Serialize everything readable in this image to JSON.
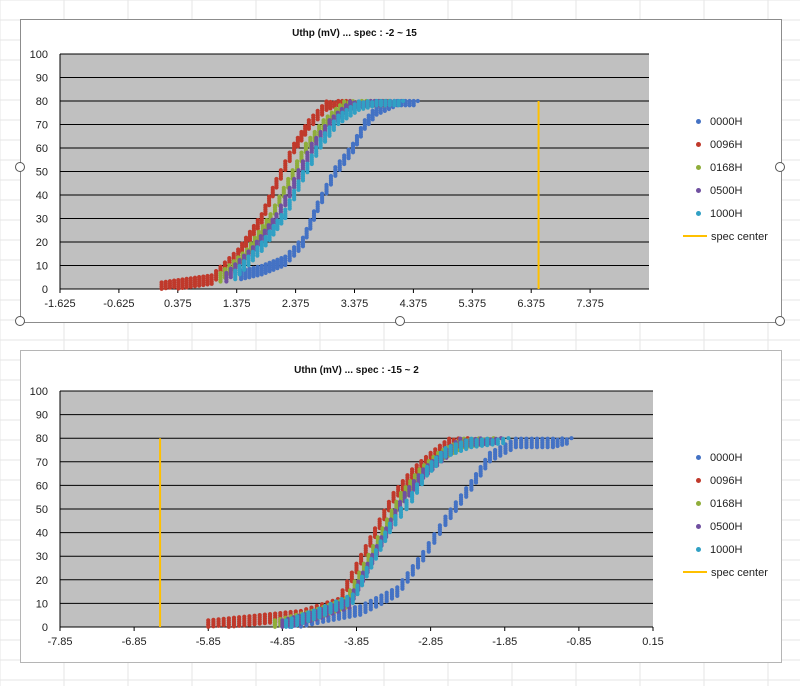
{
  "colors": {
    "plot_bg": "#c0c0c0",
    "grid": "#000000",
    "spec_line": "#ffc000",
    "series": {
      "0000H": "#4472c4",
      "0096H": "#c0392b",
      "0168H": "#8fad3a",
      "0500H": "#7050a0",
      "1000H": "#31a0c4"
    }
  },
  "legend": {
    "items": [
      {
        "label": "0000H",
        "color": "#4472c4",
        "kind": "dot"
      },
      {
        "label": "0096H",
        "color": "#c0392b",
        "kind": "dot"
      },
      {
        "label": "0168H",
        "color": "#8fad3a",
        "kind": "dot"
      },
      {
        "label": "0500H",
        "color": "#7050a0",
        "kind": "dot"
      },
      {
        "label": "1000H",
        "color": "#31a0c4",
        "kind": "dot"
      },
      {
        "label": "spec center",
        "color": "#ffc000",
        "kind": "line"
      }
    ]
  },
  "chart_data": [
    {
      "type": "scatter",
      "title": "Uthp (mV)   ...  spec :   -2 ~ 15",
      "xlabel": "",
      "ylabel": "",
      "xlim": [
        -1.625,
        8.375
      ],
      "ylim": [
        0,
        100
      ],
      "x_ticks": [
        "-1.625",
        "-0.625",
        "0.375",
        "1.375",
        "2.375",
        "3.375",
        "4.375",
        "5.375",
        "6.375",
        "7.375"
      ],
      "y_ticks": [
        "0",
        "10",
        "20",
        "30",
        "40",
        "50",
        "60",
        "70",
        "80",
        "90",
        "100"
      ],
      "grid": true,
      "legend_position": "right",
      "spec_center": {
        "x": 6.5,
        "y_range": [
          0,
          80
        ]
      },
      "series": [
        {
          "name": "0000H",
          "points": [
            [
              1.45,
              6
            ],
            [
              1.8,
              8
            ],
            [
              2.2,
              12
            ],
            [
              2.5,
              20
            ],
            [
              2.75,
              35
            ],
            [
              3.05,
              50
            ],
            [
              3.35,
              60
            ],
            [
              3.55,
              70
            ],
            [
              3.75,
              76
            ],
            [
              4.1,
              80
            ],
            [
              4.45,
              80
            ]
          ]
        },
        {
          "name": "0096H",
          "points": [
            [
              0.1,
              1
            ],
            [
              0.95,
              4
            ],
            [
              1.4,
              15
            ],
            [
              1.8,
              30
            ],
            [
              2.05,
              45
            ],
            [
              2.35,
              60
            ],
            [
              2.6,
              70
            ],
            [
              2.9,
              78
            ],
            [
              3.1,
              80
            ],
            [
              3.3,
              80
            ]
          ]
        },
        {
          "name": "0168H",
          "points": [
            [
              1.1,
              5
            ],
            [
              1.55,
              15
            ],
            [
              1.95,
              30
            ],
            [
              2.25,
              45
            ],
            [
              2.55,
              60
            ],
            [
              2.85,
              70
            ],
            [
              3.2,
              78
            ],
            [
              3.5,
              80
            ],
            [
              3.95,
              80
            ]
          ]
        },
        {
          "name": "0500H",
          "points": [
            [
              1.2,
              5
            ],
            [
              1.65,
              16
            ],
            [
              2.05,
              30
            ],
            [
              2.35,
              45
            ],
            [
              2.65,
              60
            ],
            [
              2.95,
              70
            ],
            [
              3.3,
              78
            ],
            [
              3.65,
              80
            ],
            [
              4.05,
              80
            ]
          ]
        },
        {
          "name": "1000H",
          "points": [
            [
              1.35,
              6
            ],
            [
              1.8,
              18
            ],
            [
              2.2,
              32
            ],
            [
              2.5,
              48
            ],
            [
              2.8,
              62
            ],
            [
              3.1,
              72
            ],
            [
              3.45,
              78
            ],
            [
              3.75,
              80
            ],
            [
              4.2,
              80
            ]
          ]
        }
      ]
    },
    {
      "type": "scatter",
      "title": "Uthn (mV)   ...  spec :   -15 ~ 2",
      "xlabel": "",
      "ylabel": "",
      "xlim": [
        -7.85,
        0.15
      ],
      "ylim": [
        0,
        100
      ],
      "x_ticks": [
        "-7.85",
        "-6.85",
        "-5.85",
        "-4.85",
        "-3.85",
        "-2.85",
        "-1.85",
        "-0.85",
        "0.15"
      ],
      "y_ticks": [
        "0",
        "10",
        "20",
        "30",
        "40",
        "50",
        "60",
        "70",
        "80",
        "90",
        "100"
      ],
      "grid": true,
      "legend_position": "right",
      "spec_center": {
        "x": -6.5,
        "y_range": [
          0,
          80
        ]
      },
      "series": [
        {
          "name": "0000H",
          "points": [
            [
              -4.75,
              1
            ],
            [
              -4.3,
              4
            ],
            [
              -3.8,
              7
            ],
            [
              -3.3,
              15
            ],
            [
              -2.95,
              30
            ],
            [
              -2.65,
              45
            ],
            [
              -2.3,
              60
            ],
            [
              -2.05,
              72
            ],
            [
              -1.7,
              78
            ],
            [
              -1.2,
              78
            ],
            [
              -0.95,
              80
            ]
          ]
        },
        {
          "name": "0096H",
          "points": [
            [
              -5.85,
              1
            ],
            [
              -4.6,
              5
            ],
            [
              -4.1,
              10
            ],
            [
              -3.85,
              25
            ],
            [
              -3.6,
              40
            ],
            [
              -3.35,
              55
            ],
            [
              -3.1,
              65
            ],
            [
              -2.85,
              72
            ],
            [
              -2.6,
              78
            ],
            [
              -2.35,
              80
            ]
          ]
        },
        {
          "name": "0168H",
          "points": [
            [
              -4.95,
              1
            ],
            [
              -4.45,
              5
            ],
            [
              -4.0,
              10
            ],
            [
              -3.75,
              25
            ],
            [
              -3.5,
              40
            ],
            [
              -3.25,
              55
            ],
            [
              -3.0,
              65
            ],
            [
              -2.75,
              72
            ],
            [
              -2.4,
              78
            ],
            [
              -2.0,
              80
            ]
          ]
        },
        {
          "name": "0500H",
          "points": [
            [
              -4.85,
              1
            ],
            [
              -4.4,
              5
            ],
            [
              -3.95,
              10
            ],
            [
              -3.7,
              25
            ],
            [
              -3.45,
              40
            ],
            [
              -3.2,
              55
            ],
            [
              -2.95,
              65
            ],
            [
              -2.7,
              72
            ],
            [
              -2.45,
              78
            ],
            [
              -1.9,
              80
            ]
          ]
        },
        {
          "name": "1000H",
          "points": [
            [
              -4.8,
              1
            ],
            [
              -4.35,
              6
            ],
            [
              -3.9,
              12
            ],
            [
              -3.65,
              27
            ],
            [
              -3.4,
              42
            ],
            [
              -3.1,
              55
            ],
            [
              -2.9,
              66
            ],
            [
              -2.65,
              74
            ],
            [
              -2.3,
              78
            ],
            [
              -1.8,
              80
            ]
          ]
        }
      ]
    }
  ]
}
